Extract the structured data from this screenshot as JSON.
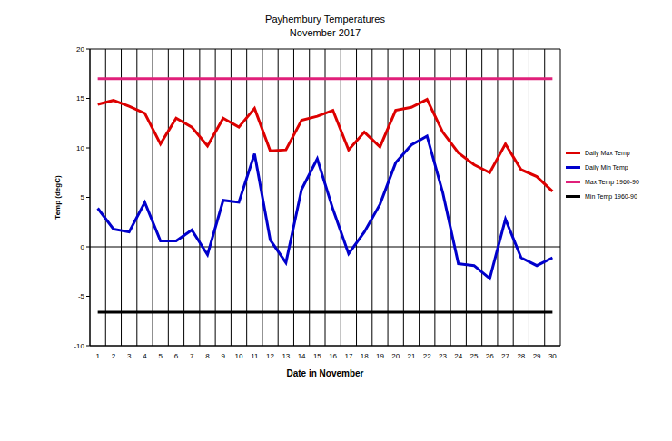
{
  "chart_data": {
    "type": "line",
    "title": "Payhembury Temperatures",
    "subtitle": "November 2017",
    "x_label": "Date in November",
    "y_label": "Temp (degC)",
    "categories": [
      "1",
      "2",
      "3",
      "4",
      "5",
      "6",
      "7",
      "8",
      "9",
      "10",
      "11",
      "12",
      "13",
      "14",
      "15",
      "16",
      "17",
      "18",
      "19",
      "20",
      "21",
      "22",
      "23",
      "24",
      "25",
      "26",
      "27",
      "28",
      "29",
      "30"
    ],
    "series": [
      {
        "name": "Daily Max Temp",
        "color": "#dd0000",
        "values": [
          14.4,
          14.8,
          14.2,
          13.5,
          10.4,
          13.0,
          12.1,
          10.2,
          13.0,
          12.1,
          14.0,
          9.7,
          9.8,
          12.8,
          13.2,
          13.8,
          9.8,
          11.6,
          10.1,
          13.8,
          14.1,
          14.9,
          11.6,
          9.5,
          8.3,
          7.5,
          10.4,
          7.8,
          7.1,
          5.6
        ]
      },
      {
        "name": "Daily Min Temp",
        "color": "#0000cc",
        "values": [
          3.9,
          1.8,
          1.5,
          4.5,
          0.6,
          0.6,
          1.7,
          -0.8,
          4.7,
          4.5,
          9.4,
          0.7,
          -1.6,
          5.8,
          8.9,
          3.8,
          -0.7,
          1.5,
          4.3,
          8.5,
          10.3,
          11.2,
          5.5,
          -1.7,
          -1.9,
          -3.2,
          2.8,
          -1.1,
          -1.9,
          -1.1
        ]
      },
      {
        "name": "Max Temp 1960-90",
        "color": "#e0207a",
        "values": [
          17,
          17,
          17,
          17,
          17,
          17,
          17,
          17,
          17,
          17,
          17,
          17,
          17,
          17,
          17,
          17,
          17,
          17,
          17,
          17,
          17,
          17,
          17,
          17,
          17,
          17,
          17,
          17,
          17,
          17
        ]
      },
      {
        "name": "Min Temp 1960-90",
        "color": "#000000",
        "values": [
          -6.6,
          -6.6,
          -6.6,
          -6.6,
          -6.6,
          -6.6,
          -6.6,
          -6.6,
          -6.6,
          -6.6,
          -6.6,
          -6.6,
          -6.6,
          -6.6,
          -6.6,
          -6.6,
          -6.6,
          -6.6,
          -6.6,
          -6.6,
          -6.6,
          -6.6,
          -6.6,
          -6.6,
          -6.6,
          -6.6,
          -6.6,
          -6.6,
          -6.6,
          -6.6
        ]
      }
    ],
    "ylim": [
      -10,
      20
    ],
    "yticks": [
      -10,
      -5,
      0,
      5,
      10,
      15,
      20
    ],
    "grid": true,
    "legend": "right"
  }
}
